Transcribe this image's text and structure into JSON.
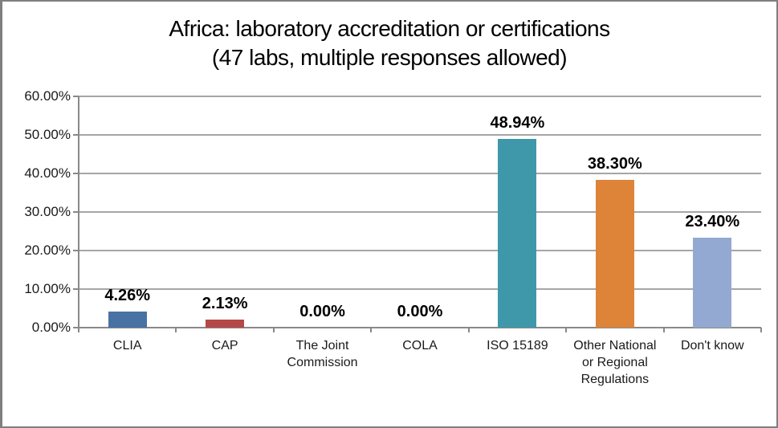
{
  "chart_data": {
    "type": "bar",
    "title": "Africa: laboratory accreditation or certifications",
    "subtitle": "(47 labs, multiple responses allowed)",
    "categories": [
      "CLIA",
      "CAP",
      "The Joint Commission",
      "COLA",
      "ISO 15189",
      "Other National or Regional Regulations",
      "Don't know"
    ],
    "values": [
      4.26,
      2.13,
      0,
      0,
      48.94,
      38.3,
      23.4
    ],
    "value_labels": [
      "4.26%",
      "2.13%",
      "0.00%",
      "0.00%",
      "48.94%",
      "38.30%",
      "23.40%"
    ],
    "bar_colors": [
      "#4872A3",
      "#B44846",
      null,
      null,
      "#3E98A9",
      "#DD8439",
      "#94A9D1"
    ],
    "xlabel": "",
    "ylabel": "",
    "ylim": [
      0,
      60
    ],
    "ytick_step": 10,
    "ytick_labels": [
      "0.00%",
      "10.00%",
      "20.00%",
      "30.00%",
      "40.00%",
      "50.00%",
      "60.00%"
    ],
    "grid": true,
    "legend": "none",
    "colors": {
      "gridline": "#A6A6A6",
      "axis": "#898989",
      "figure_border": "#7F7F7F",
      "text": "#1A1A1A",
      "background": "#FFFFFF"
    }
  }
}
